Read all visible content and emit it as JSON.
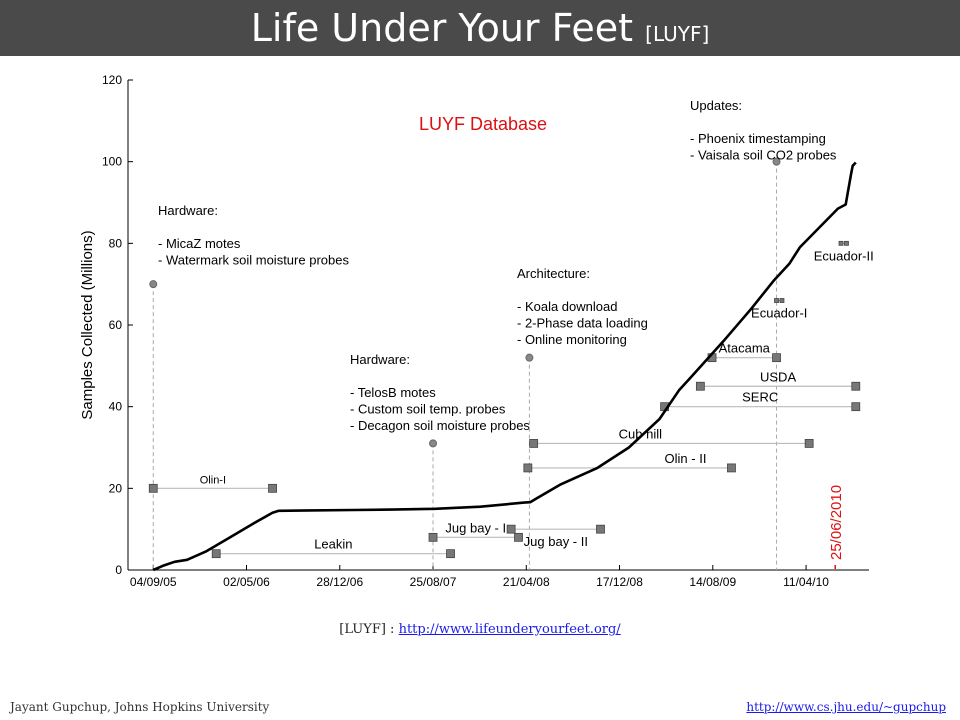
{
  "slide": {
    "title": "Life Under Your Feet",
    "title_suffix": "[LUYF]",
    "reference_prefix": "[LUYF] : ",
    "reference_url": "http://www.lifeunderyourfeet.org/",
    "footer_left": "Jayant Gupchup, Johns Hopkins University",
    "footer_right": "http://www.cs.jhu.edu/~gupchup"
  },
  "chart_data": {
    "type": "line",
    "title": "LUYF Database",
    "title_color": "#dd1111",
    "ylabel": "Samples Collected (Millions)",
    "xlabel": "",
    "ylim": [
      0,
      120
    ],
    "yticks": [
      0,
      20,
      40,
      60,
      80,
      100,
      120
    ],
    "xlim": [
      "2005-07-01",
      "2010-09-20"
    ],
    "xticks": [
      {
        "date": "2005-09-04",
        "label": "04/09/05"
      },
      {
        "date": "2006-05-02",
        "label": "02/05/06"
      },
      {
        "date": "2006-12-28",
        "label": "28/12/06"
      },
      {
        "date": "2007-08-25",
        "label": "25/08/07"
      },
      {
        "date": "2008-04-21",
        "label": "21/04/08"
      },
      {
        "date": "2008-12-17",
        "label": "17/12/08"
      },
      {
        "date": "2009-08-14",
        "label": "14/08/09"
      },
      {
        "date": "2010-04-11",
        "label": "11/04/10"
      }
    ],
    "grid": false,
    "series": [
      {
        "color": "#000000",
        "points": [
          [
            "2005-09-04",
            0
          ],
          [
            "2005-09-28",
            1
          ],
          [
            "2005-10-29",
            2
          ],
          [
            "2005-11-30",
            2.5
          ],
          [
            "2006-01-17",
            4.5
          ],
          [
            "2006-03-21",
            8
          ],
          [
            "2006-05-22",
            11.5
          ],
          [
            "2006-07-08",
            14
          ],
          [
            "2006-07-24",
            14.5
          ],
          [
            "2006-10-12",
            14.6
          ],
          [
            "2007-02-02",
            14.7
          ],
          [
            "2007-05-09",
            14.8
          ],
          [
            "2007-08-30",
            15
          ],
          [
            "2007-12-25",
            15.5
          ],
          [
            "2008-04-15",
            16.5
          ],
          [
            "2008-05-01",
            16.6
          ],
          [
            "2008-05-17",
            17.5
          ],
          [
            "2008-07-19",
            21
          ],
          [
            "2008-10-21",
            25
          ],
          [
            "2009-01-10",
            30
          ],
          [
            "2009-03-30",
            37
          ],
          [
            "2009-05-19",
            44
          ],
          [
            "2009-06-12",
            46.5
          ],
          [
            "2009-09-10",
            56
          ],
          [
            "2009-11-21",
            64
          ],
          [
            "2010-01-19",
            71
          ],
          [
            "2010-02-27",
            75
          ],
          [
            "2010-03-26",
            79
          ],
          [
            "2010-05-01",
            82.5
          ],
          [
            "2010-07-02",
            88.5
          ],
          [
            "2010-07-22",
            89.5
          ],
          [
            "2010-08-05",
            97
          ],
          [
            "2010-08-09",
            99
          ],
          [
            "2010-08-17",
            99.8
          ]
        ]
      }
    ],
    "deployments": [
      {
        "name": "Olin-I",
        "start": "2005-09-04",
        "end": "2006-07-08",
        "y": 20,
        "label_pos": "above-mid"
      },
      {
        "name": "Leakin",
        "start": "2006-02-13",
        "end": "2007-10-09",
        "y": 4,
        "label_pos": "above-mid"
      },
      {
        "name": "Jug bay - I",
        "start": "2007-08-25",
        "end": "2008-04-01",
        "y": 8,
        "label_pos": "above-mid"
      },
      {
        "name": "Jug bay - II",
        "start": "2008-03-13",
        "end": "2008-10-29",
        "y": 10,
        "label_pos": "below-mid"
      },
      {
        "name": "Olin - II",
        "start": "2008-04-25",
        "end": "2009-10-01",
        "y": 25,
        "label_pos": "above-end"
      },
      {
        "name": "Cub hill",
        "start": "2008-05-10",
        "end": "2010-04-19",
        "y": 31,
        "label_pos": "above-start"
      },
      {
        "name": "SERC",
        "start": "2009-04-12",
        "end": "2010-08-17",
        "y": 40,
        "label_pos": "above-mid"
      },
      {
        "name": "USDA",
        "start": "2009-07-13",
        "end": "2010-08-17",
        "y": 45,
        "label_pos": "above-mid"
      },
      {
        "name": "Atacama",
        "start": "2009-08-12",
        "end": "2010-01-25",
        "y": 52,
        "label_pos": "above-mid"
      },
      {
        "name": "Ecuador-I",
        "start": "2010-01-25",
        "end": "2010-02-08",
        "y": 66,
        "label_pos": "below-mid",
        "small": true
      },
      {
        "name": "Ecuador-II",
        "start": "2010-07-10",
        "end": "2010-07-24",
        "y": 80,
        "label_pos": "below-mid",
        "small": true
      }
    ],
    "annotations": [
      {
        "date": "2005-09-04",
        "y": 70,
        "lines": [
          "Hardware:",
          "",
          "- MicaZ motes",
          "- Watermark soil moisture probes"
        ]
      },
      {
        "date": "2007-08-25",
        "y": 31,
        "lines": [
          "Hardware:",
          "",
          "- TelosB motes",
          "- Custom soil temp. probes",
          "- Decagon soil moisture probes"
        ]
      },
      {
        "date": "2008-04-29",
        "y": 52,
        "lines": [
          "Architecture:",
          "",
          "- Koala download",
          "- 2-Phase data loading",
          "- Online monitoring"
        ]
      },
      {
        "date": "2010-01-25",
        "y": 100,
        "lines": [
          "Updates:",
          "",
          "- Phoenix timestamping",
          "- Vaisala soil CO2 probes"
        ]
      }
    ],
    "date_marker": {
      "date": "2010-06-25",
      "label": "25/06/2010",
      "color": "#dd1111"
    }
  }
}
